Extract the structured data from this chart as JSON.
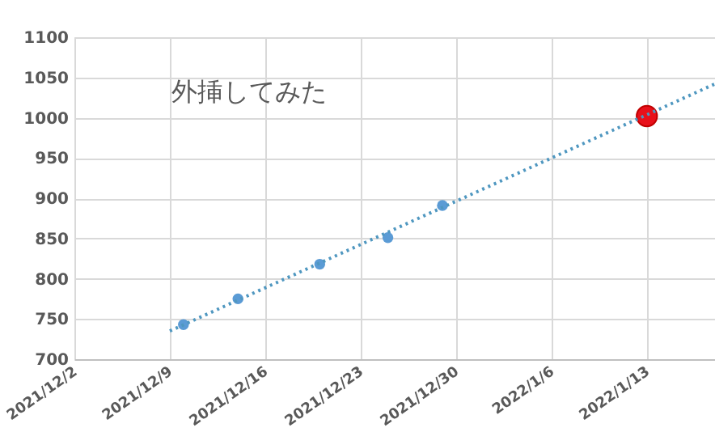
{
  "chart_data": {
    "type": "scatter",
    "annotations": [
      "外挿してみた"
    ],
    "series": [
      {
        "color": "#5b9bd5",
        "x": [
          "2021-12-10",
          "2021-12-14",
          "2021-12-20",
          "2021-12-25",
          "2021-12-29"
        ],
        "values": [
          743,
          775,
          818,
          851,
          891
        ]
      },
      {
        "color": "#e8101a",
        "x": [
          "2022-01-13"
        ],
        "values": [
          1002
        ]
      },
      {
        "type": "line",
        "color": "#4f97c0",
        "line_style": "dotted",
        "marker": "none",
        "x": [
          "2021-12-09",
          "2022-01-18"
        ],
        "values": [
          735,
          1042
        ]
      }
    ],
    "xlim": [
      "2021-12-02",
      "2022-01-18"
    ],
    "xticks": [
      {
        "value": "2021-12-02",
        "label": "2021/12/2"
      },
      {
        "value": "2021-12-09",
        "label": "2021/12/9"
      },
      {
        "value": "2021-12-16",
        "label": "2021/12/16"
      },
      {
        "value": "2021-12-23",
        "label": "2021/12/23"
      },
      {
        "value": "2021-12-30",
        "label": "2021/12/30"
      },
      {
        "value": "2022-01-06",
        "label": "2022/1/6"
      },
      {
        "value": "2022-01-13",
        "label": "2022/1/13"
      }
    ],
    "ylim": [
      700,
      1100
    ],
    "yticks": [
      700,
      750,
      800,
      850,
      900,
      950,
      1000,
      1050,
      1100
    ],
    "grid": true,
    "marker": "circle"
  }
}
